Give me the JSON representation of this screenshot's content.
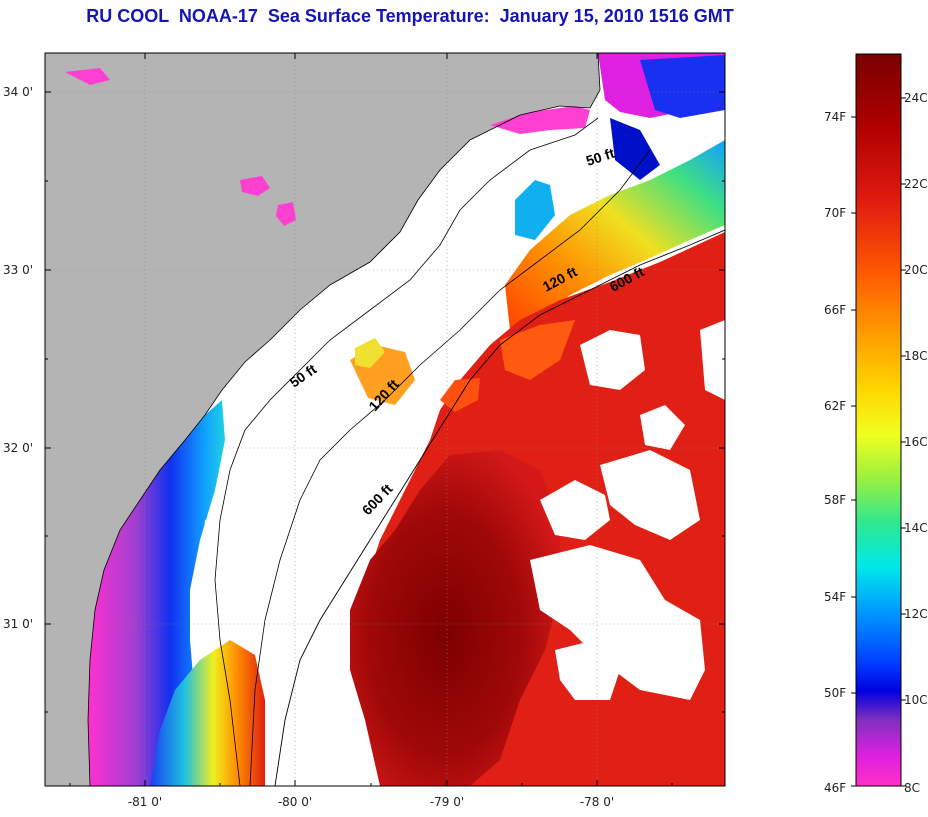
{
  "title": "RU COOL  NOAA-17  Sea Surface Temperature:  January 15, 2010 1516 GMT",
  "axes": {
    "lat_ticks": [
      "34 0'",
      "33 0'",
      "32 0'",
      "31 0'"
    ],
    "lon_ticks": [
      "-81 0'",
      "-80 0'",
      "-79 0'",
      "-78 0'"
    ]
  },
  "contours": {
    "labels": [
      "50 ft",
      "120 ft",
      "600 ft",
      "50 ft",
      "120 ft",
      "600 ft"
    ]
  },
  "colorbar": {
    "fahrenheit_labels": [
      "74F",
      "70F",
      "66F",
      "62F",
      "58F",
      "54F",
      "50F",
      "46F"
    ],
    "celsius_labels": [
      "24C",
      "22C",
      "20C",
      "18C",
      "16C",
      "14C",
      "12C",
      "10C",
      "8C"
    ],
    "colors": [
      "#7a0000",
      "#b00000",
      "#e01b10",
      "#ff5a00",
      "#ff9a00",
      "#ffd800",
      "#f0ff20",
      "#9af040",
      "#30e890",
      "#00e8e8",
      "#009cff",
      "#0040ff",
      "#0000e0",
      "#8030c0",
      "#e020e0",
      "#ff30c8"
    ]
  },
  "colors": {
    "land": "#b4b4b4",
    "cloud": "#ffffff",
    "title": "#1515b4"
  }
}
